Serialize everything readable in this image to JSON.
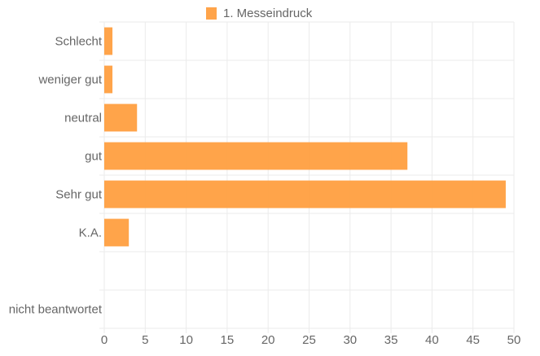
{
  "chart_data": {
    "type": "bar",
    "orientation": "horizontal",
    "categories": [
      "Schlecht",
      "weniger gut",
      "neutral",
      "gut",
      "Sehr gut",
      "K.A.",
      "",
      "nicht beantwortet"
    ],
    "series": [
      {
        "name": "1. Messeindruck",
        "values": [
          1,
          1,
          4,
          37,
          49,
          3,
          0,
          0
        ],
        "color": "#ff9f40"
      }
    ],
    "x_ticks": [
      "0",
      "5",
      "10",
      "15",
      "20",
      "25",
      "30",
      "35",
      "40",
      "45",
      "50"
    ],
    "xlim": [
      0,
      50
    ],
    "grid": true,
    "legend_position": "top-center"
  }
}
